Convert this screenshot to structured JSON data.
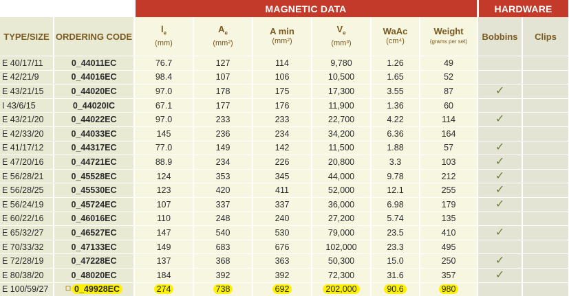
{
  "band": {
    "magnetic": "MAGNETIC DATA",
    "hardware": "HARDWARE"
  },
  "headers": {
    "type_size": "TYPE/SIZE",
    "ordering_code": "ORDERING CODE",
    "le": {
      "main": "l",
      "sub": "e",
      "unit": "(mm)"
    },
    "ae": {
      "main": "A",
      "sub": "e",
      "unit": "(mm²)"
    },
    "amin": {
      "main": "A min",
      "unit": "(mm²)"
    },
    "ve": {
      "main": "V",
      "sub": "e",
      "unit": "(mm³)"
    },
    "waac": {
      "main": "WaAc",
      "unit": "(cm⁴)"
    },
    "weight": {
      "main": "Weight",
      "unit": "(grams per set)"
    },
    "bobbins": "Bobbins",
    "clips": "Clips"
  },
  "check_glyph": "✓",
  "rows": [
    {
      "type": "E 40/17/11",
      "code": "0_44011EC",
      "le": "76.7",
      "ae": "127",
      "amin": "114",
      "ve": "9,780",
      "waac": "1.26",
      "weight": "49",
      "bobbin": false
    },
    {
      "type": "E 42/21/9",
      "code": "0_44016EC",
      "le": "98.4",
      "ae": "107",
      "amin": "106",
      "ve": "10,500",
      "waac": "1.65",
      "weight": "52",
      "bobbin": false
    },
    {
      "type": "E 43/21/15",
      "code": "0_44020EC",
      "le": "97.0",
      "ae": "178",
      "amin": "175",
      "ve": "17,300",
      "waac": "3.55",
      "weight": "87",
      "bobbin": true
    },
    {
      "type": "I 43/6/15",
      "code": "0_44020IC",
      "le": "67.1",
      "ae": "177",
      "amin": "176",
      "ve": "11,900",
      "waac": "1.36",
      "weight": "60",
      "bobbin": false
    },
    {
      "type": "E 43/21/20",
      "code": "0_44022EC",
      "le": "97.0",
      "ae": "233",
      "amin": "233",
      "ve": "22,700",
      "waac": "4.22",
      "weight": "114",
      "bobbin": true
    },
    {
      "type": "E 42/33/20",
      "code": "0_44033EC",
      "le": "145",
      "ae": "236",
      "amin": "234",
      "ve": "34,200",
      "waac": "6.36",
      "weight": "164",
      "bobbin": false
    },
    {
      "type": "E 41/17/12",
      "code": "0_44317EC",
      "le": "77.0",
      "ae": "149",
      "amin": "142",
      "ve": "11,500",
      "waac": "1.88",
      "weight": "57",
      "bobbin": true
    },
    {
      "type": "E 47/20/16",
      "code": "0_44721EC",
      "le": "88.9",
      "ae": "234",
      "amin": "226",
      "ve": "20,800",
      "waac": "3.3",
      "weight": "103",
      "bobbin": true
    },
    {
      "type": "E 56/28/21",
      "code": "0_45528EC",
      "le": "124",
      "ae": "353",
      "amin": "345",
      "ve": "44,000",
      "waac": "9.78",
      "weight": "212",
      "bobbin": true
    },
    {
      "type": "E 56/28/25",
      "code": "0_45530EC",
      "le": "123",
      "ae": "420",
      "amin": "411",
      "ve": "52,000",
      "waac": "12.1",
      "weight": "255",
      "bobbin": true
    },
    {
      "type": "E 56/24/19",
      "code": "0_45724EC",
      "le": "107",
      "ae": "337",
      "amin": "337",
      "ve": "36,000",
      "waac": "6.98",
      "weight": "179",
      "bobbin": true
    },
    {
      "type": "E 60/22/16",
      "code": "0_46016EC",
      "le": "110",
      "ae": "248",
      "amin": "240",
      "ve": "27,200",
      "waac": "5.74",
      "weight": "135",
      "bobbin": false
    },
    {
      "type": "E 65/32/27",
      "code": "0_46527EC",
      "le": "147",
      "ae": "540",
      "amin": "530",
      "ve": "79,000",
      "waac": "23.5",
      "weight": "410",
      "bobbin": true
    },
    {
      "type": "E 70/33/32",
      "code": "0_47133EC",
      "le": "149",
      "ae": "683",
      "amin": "676",
      "ve": "102,000",
      "waac": "23.3",
      "weight": "495",
      "bobbin": false
    },
    {
      "type": "E 72/28/19",
      "code": "0_47228EC",
      "le": "137",
      "ae": "368",
      "amin": "363",
      "ve": "50,300",
      "waac": "15.0",
      "weight": "250",
      "bobbin": true
    },
    {
      "type": "E 80/38/20",
      "code": "0_48020EC",
      "le": "184",
      "ae": "392",
      "amin": "392",
      "ve": "72,300",
      "waac": "31.6",
      "weight": "357",
      "bobbin": true
    },
    {
      "type": "E 100/59/27",
      "code": "0_49928EC",
      "le": "274",
      "ae": "738",
      "amin": "692",
      "ve": "202,000",
      "waac": "90.6",
      "weight": "980",
      "bobbin": false,
      "highlighted": true
    }
  ],
  "colors": {
    "band_red": "#c43a2a",
    "highlight": "#fff200",
    "header_text": "#7a5a1f"
  }
}
